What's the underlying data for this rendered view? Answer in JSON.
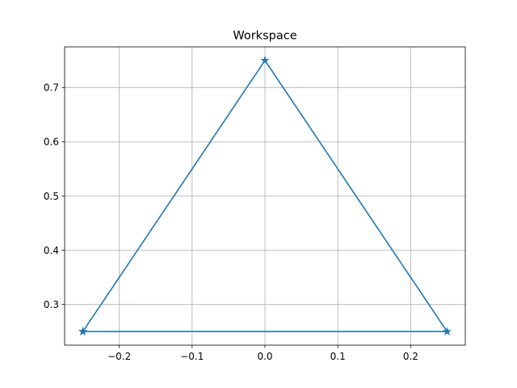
{
  "chart_data": {
    "type": "line",
    "title": "Workspace",
    "xlabel": "",
    "ylabel": "",
    "xlim": [
      -0.275,
      0.275
    ],
    "ylim": [
      0.225,
      0.775
    ],
    "x_ticks": [
      -0.2,
      -0.1,
      0.0,
      0.1,
      0.2
    ],
    "x_tick_labels": [
      "−0.2",
      "−0.1",
      "0.0",
      "0.1",
      "0.2"
    ],
    "y_ticks": [
      0.3,
      0.4,
      0.5,
      0.6,
      0.7
    ],
    "y_tick_labels": [
      "0.3",
      "0.4",
      "0.5",
      "0.6",
      "0.7"
    ],
    "grid": true,
    "series": [
      {
        "color": "#1f77b4",
        "marker": "star",
        "x": [
          -0.25,
          0.0,
          0.25,
          -0.25
        ],
        "y": [
          0.25,
          0.75,
          0.25,
          0.25
        ]
      }
    ]
  }
}
